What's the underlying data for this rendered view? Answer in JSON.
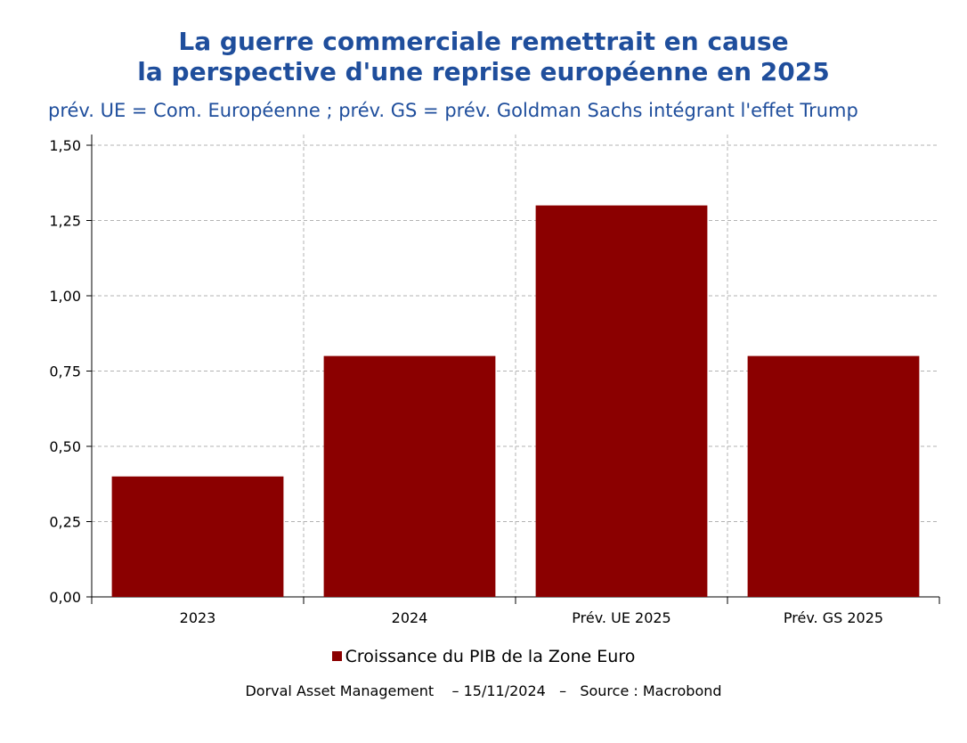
{
  "title_line1": "La guerre commerciale remettrait en cause",
  "title_line2": "la perspective d'une reprise européenne en 2025",
  "subtitle": "prév. UE = Com. Européenne ; prév. GS = prév. Goldman Sachs intégrant l'effet Trump",
  "footer": "Dorval Asset Management    – 15/11/2024   –   Source : Macrobond",
  "colors": {
    "bar": "#8b0000",
    "title": "#1f4e9c",
    "grid": "#b3b3b3"
  },
  "chart_data": {
    "type": "bar",
    "categories": [
      "2023",
      "2024",
      "Prév. UE 2025",
      "Prév. GS 2025"
    ],
    "series": [
      {
        "name": "Croissance du PIB de la Zone Euro",
        "values": [
          0.4,
          0.8,
          1.3,
          0.8
        ]
      }
    ],
    "ylim": [
      0,
      1.5
    ],
    "yticks": [
      "0,00",
      "0,25",
      "0,50",
      "0,75",
      "1,00",
      "1,25",
      "1,50"
    ],
    "grid": true,
    "legend_position": "bottom"
  }
}
